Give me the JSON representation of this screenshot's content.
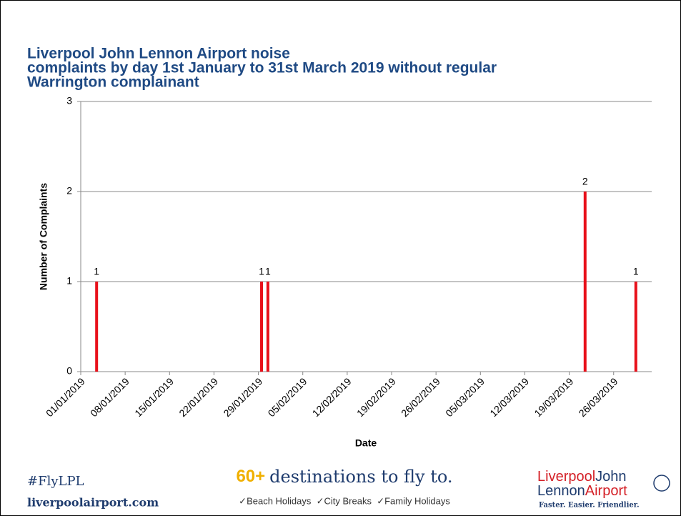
{
  "chart_data": {
    "type": "bar",
    "title": [
      "Liverpool John Lennon Airport noise",
      "complaints by day 1st January to 31st March 2019 without regular",
      "Warrington complainant"
    ],
    "x_label": "Date",
    "y_label": "Number of Complaints",
    "x": [
      "03/01/2019",
      "29/01/2019",
      "30/01/2019",
      "21/03/2019",
      "29/03/2019"
    ],
    "values": [
      1,
      1,
      1,
      2,
      1
    ],
    "color": "#e8101a",
    "xlim": [
      "01/01/2019",
      "31/03/2019"
    ],
    "xticks": [
      "01/01/2019",
      "08/01/2019",
      "15/01/2019",
      "22/01/2019",
      "29/01/2019",
      "05/02/2019",
      "12/02/2019",
      "19/02/2019",
      "26/02/2019",
      "05/03/2019",
      "12/03/2019",
      "19/03/2019",
      "26/03/2019"
    ],
    "ylim": [
      0,
      3
    ],
    "yticks": [
      0,
      1,
      2,
      3
    ],
    "grid": true
  },
  "footer": {
    "hashtag": "#FlyLPL",
    "website": "liverpoolairport.com",
    "headline_number": "60+",
    "headline_text": "destinations to fly to.",
    "features": "✓Beach Holidays  ✓City Breaks  ✓Family Holidays",
    "logo_line1_a": "Liverpool",
    "logo_line1_b": "John",
    "logo_line2_a": "Lennon",
    "logo_line2_b": "Airport",
    "tagline": "Faster. Easier. Friendlier."
  }
}
